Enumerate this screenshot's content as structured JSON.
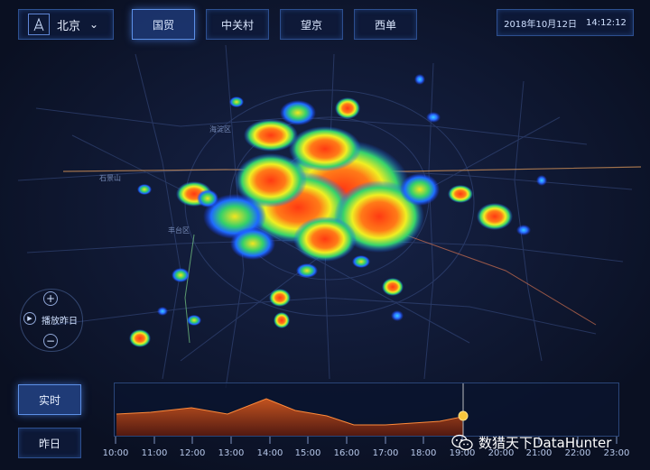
{
  "header": {
    "city": "北京",
    "tabs": [
      {
        "label": "国贸",
        "active": true
      },
      {
        "label": "中关村",
        "active": false
      },
      {
        "label": "望京",
        "active": false
      },
      {
        "label": "西单",
        "active": false
      }
    ],
    "date": "2018年10月12日",
    "time": "14:12:12"
  },
  "map": {
    "place_labels": [
      "海淀区",
      "石景山",
      "丰台区"
    ]
  },
  "controls": {
    "zoom_in": "+",
    "zoom_out": "−",
    "play_label": "播放昨日"
  },
  "modes": [
    {
      "label": "实时",
      "active": true
    },
    {
      "label": "昨日",
      "active": false
    }
  ],
  "timeline": {
    "ticks": [
      "10:00",
      "11:00",
      "12:00",
      "13:00",
      "14:00",
      "15:00",
      "16:00",
      "17:00",
      "18:00",
      "19:00",
      "20:00",
      "21:00",
      "22:00",
      "23:00"
    ],
    "current": "19:00"
  },
  "watermark": "数猎天下DataHunter",
  "colors": {
    "accent": "#5c8fe6",
    "heat_hot": "#ff4a1a",
    "heat_mid": "#e8f020",
    "heat_low": "#2a7cff",
    "marker": "#f7c63c"
  }
}
